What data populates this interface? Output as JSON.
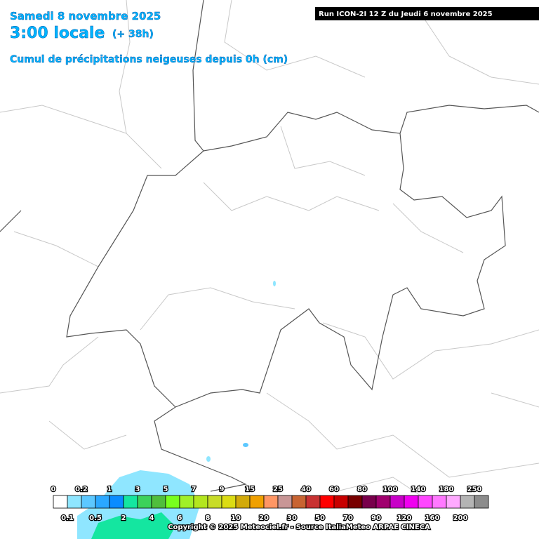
{
  "header": {
    "date": "Samedi 8 novembre 2025",
    "time": "3:00 locale",
    "lead": "(+ 38h)",
    "subtitle": "Cumul de précipitations neigeuses depuis 0h (cm)",
    "run": "Run ICON-2I 12 Z du Jeudi 6 novembre 2025"
  },
  "legend": {
    "thresholds": [
      0,
      0.1,
      0.2,
      0.5,
      1,
      2,
      3,
      4,
      5,
      6,
      7,
      8,
      9,
      10,
      15,
      20,
      25,
      30,
      40,
      50,
      60,
      70,
      80,
      90,
      100,
      120,
      140,
      160,
      180,
      200,
      250
    ],
    "colors": [
      "#ffffff",
      "#8fe6ff",
      "#5cc8ff",
      "#2aa8ff",
      "#0a8cff",
      "#14e6a0",
      "#3cd25a",
      "#50be3c",
      "#78ff1e",
      "#a0f028",
      "#b4e61e",
      "#c8dc28",
      "#dcdc14",
      "#d2aa0a",
      "#f0a000",
      "#ff9664",
      "#c89696",
      "#c86432",
      "#c83232",
      "#ff0000",
      "#c80000",
      "#780000",
      "#78004b",
      "#a0006e",
      "#c800c8",
      "#f000f0",
      "#ff46ff",
      "#ff78ff",
      "#ffaaff",
      "#b4b4b4",
      "#8c8c8c",
      "#323232"
    ]
  },
  "footer": {
    "copyright": "Copyright © 2025 Meteociel.fr - Source ItaliaMeteo ARPAE CINECA"
  }
}
